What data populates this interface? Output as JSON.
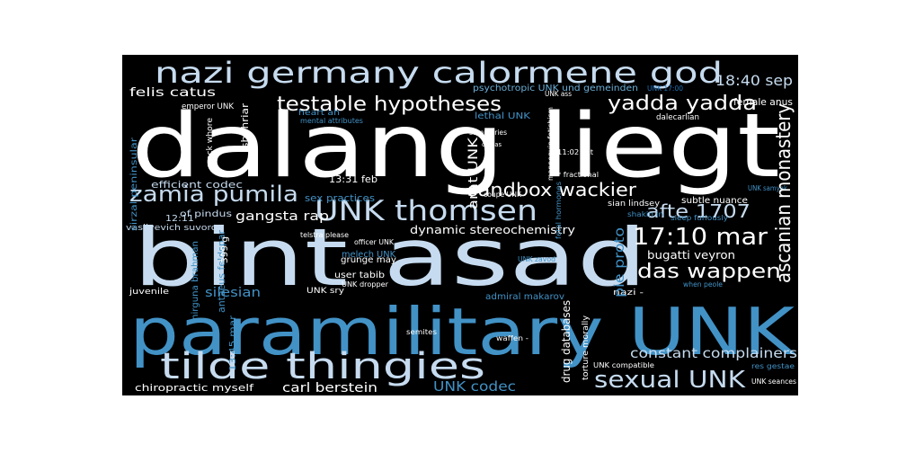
{
  "palette": {
    "white": "#ffffff",
    "light_blue": "#c6dbef",
    "mid_blue": "#6baed6",
    "blue": "#4292c6",
    "deep_blue": "#2171b5",
    "background": "#000000"
  },
  "words": [
    {
      "id": "dalang-liegt",
      "text": "dalang liegt",
      "color": "white"
    },
    {
      "id": "bint-asad",
      "text": "bint asad",
      "color": "light_blue"
    },
    {
      "id": "paramilitary-unk",
      "text": "paramilitary UNK",
      "color": "blue"
    },
    {
      "id": "nazi-germany-calormene-god",
      "text": "nazi germany calormene god",
      "color": "light_blue"
    },
    {
      "id": "tilde-thingies",
      "text": "tilde thingies",
      "color": "light_blue"
    },
    {
      "id": "testable-hypotheses",
      "text": "testable hypotheses",
      "color": "white"
    },
    {
      "id": "yadda-yadda",
      "text": "yadda yadda",
      "color": "white"
    },
    {
      "id": "zamia-pumila",
      "text": "zamia pumila",
      "color": "light_blue"
    },
    {
      "id": "unk-thomsen",
      "text": "UNK thomsen",
      "color": "light_blue"
    },
    {
      "id": "17-10-mar",
      "text": "17:10 mar",
      "color": "white"
    },
    {
      "id": "sandbox-wackier",
      "text": "sandbox wackier",
      "color": "white"
    },
    {
      "id": "das-wappen",
      "text": "das wappen",
      "color": "white"
    },
    {
      "id": "sexual-unk",
      "text": "sexual UNK",
      "color": "light_blue"
    },
    {
      "id": "afte-1707",
      "text": "afte 1707",
      "color": "light_blue"
    },
    {
      "id": "18-40-sep",
      "text": "18:40 sep",
      "color": "light_blue"
    },
    {
      "id": "ascanian-monastery",
      "text": "ascanian monastery",
      "color": "white"
    },
    {
      "id": "constant-complainers",
      "text": "constant complainers",
      "color": "light_blue"
    },
    {
      "id": "gangsta-rap",
      "text": "gangsta rap",
      "color": "white"
    },
    {
      "id": "felis-catus",
      "text": "felis catus",
      "color": "white"
    },
    {
      "id": "dynamic-stereochemistry",
      "text": "dynamic stereochemistry",
      "color": "white"
    },
    {
      "id": "bugatti-veyron",
      "text": "bugatti veyron",
      "color": "white"
    },
    {
      "id": "carl-berstein",
      "text": "carl berstein",
      "color": "white"
    },
    {
      "id": "unk-codec",
      "text": "UNK codec",
      "color": "blue"
    },
    {
      "id": "arat-unk",
      "text": "arat UNK",
      "color": "white"
    },
    {
      "id": "silesian",
      "text": "silesian",
      "color": "blue"
    },
    {
      "id": "pie-proto",
      "text": "pie proto",
      "color": "blue"
    },
    {
      "id": "efficient-codec",
      "text": "efficient codec",
      "color": "light_blue"
    },
    {
      "id": "sex-practices",
      "text": "sex practices",
      "color": "blue"
    },
    {
      "id": "13-31-feb",
      "text": "13:31 feb",
      "color": "white"
    },
    {
      "id": "chiropractic-myself",
      "text": "chiropractic myself",
      "color": "white"
    },
    {
      "id": "psychotropic-unk-und-gemeinden",
      "text": "psychotropic UNK und gemeinden",
      "color": "mid_blue"
    },
    {
      "id": "lethal-unk",
      "text": "lethal UNK",
      "color": "blue"
    },
    {
      "id": "heart-ah",
      "text": "heart ah",
      "color": "blue"
    },
    {
      "id": "emperor-unk",
      "text": "emperor UNK",
      "color": "white"
    },
    {
      "id": "vasilyevich-suvorov",
      "text": "vasilyevich suvorov",
      "color": "light_blue"
    },
    {
      "id": "of-pindus",
      "text": "of pindus",
      "color": "light_blue"
    },
    {
      "id": "shahriar",
      "text": "shahriar",
      "color": "white"
    },
    {
      "id": "12-11",
      "text": "12:11",
      "color": "light_blue"
    },
    {
      "id": "grunge-may",
      "text": "grunge may",
      "color": "white"
    },
    {
      "id": "user-tabib",
      "text": "user tabib",
      "color": "white"
    },
    {
      "id": "melech-unk",
      "text": "melech UNK",
      "color": "blue"
    },
    {
      "id": "unk-dropper",
      "text": "UNK dropper",
      "color": "white"
    },
    {
      "id": "female-anus",
      "text": "female anus",
      "color": "white"
    },
    {
      "id": "subtle-nuance",
      "text": "subtle nuance",
      "color": "white"
    },
    {
      "id": "admiral-makarov",
      "text": "admiral makarov",
      "color": "blue"
    },
    {
      "id": "drug-databases",
      "text": "drug databases",
      "color": "white"
    },
    {
      "id": "torture-morally",
      "text": "torture morally",
      "color": "white"
    },
    {
      "id": "unk-compatible",
      "text": "UNK compatible",
      "color": "white"
    },
    {
      "id": "juvenile",
      "text": "juvenile",
      "color": "white"
    },
    {
      "id": "res-gestae",
      "text": "res gestae",
      "color": "blue"
    },
    {
      "id": "unk-seances",
      "text": "UNK seances",
      "color": "white"
    },
    {
      "id": "sian-lindsey",
      "text": "sian lindsey",
      "color": "white"
    },
    {
      "id": "shakin-in",
      "text": "shakin in",
      "color": "blue"
    },
    {
      "id": "sleep-furiously",
      "text": "sleep furiously",
      "color": "blue"
    },
    {
      "id": "nazi-dash",
      "text": "nazi -",
      "color": "white"
    },
    {
      "id": "unk-sry",
      "text": "UNK sry",
      "color": "white"
    },
    {
      "id": "when-peole",
      "text": "when peole",
      "color": "blue"
    },
    {
      "id": "semites",
      "text": "semites",
      "color": "white"
    },
    {
      "id": "waffen",
      "text": "waffen -",
      "color": "white"
    },
    {
      "id": "13-45-mar",
      "text": "13:45 mar",
      "color": "blue"
    },
    {
      "id": "nirguna-brahman",
      "text": "nirguna brahman",
      "color": "blue"
    },
    {
      "id": "antaeus-feldspar",
      "text": "antaeus feldspar",
      "color": "blue"
    },
    {
      "id": "officer-unk",
      "text": "officer UNK",
      "color": "white"
    },
    {
      "id": "telstra-please",
      "text": "telstra please",
      "color": "white"
    },
    {
      "id": "mannequin-fetishism",
      "text": "mannequin fetishism",
      "color": "white"
    },
    {
      "id": "fetal-hormones",
      "text": "fetal hormones",
      "color": "blue"
    },
    {
      "id": "summaries",
      "text": "* summaries",
      "color": "white"
    },
    {
      "id": "fractional",
      "text": "* fractional",
      "color": "white"
    },
    {
      "id": "coupe-unk",
      "text": "coupe UNK",
      "color": "white"
    },
    {
      "id": "unk-zavod",
      "text": "UNK zavod",
      "color": "blue"
    },
    {
      "id": "comas",
      "text": "comas",
      "color": "white"
    },
    {
      "id": "mental-attributes",
      "text": "mental attributes",
      "color": "blue"
    },
    {
      "id": "crack-whore",
      "text": "crack whore",
      "color": "white"
    },
    {
      "id": "sirzal-peninsular",
      "text": "sirzal peninsular",
      "color": "blue"
    },
    {
      "id": "dalecarlian",
      "text": "dalecarlian",
      "color": "white"
    },
    {
      "id": "11-02-oct",
      "text": "11:02 oct",
      "color": "white"
    },
    {
      "id": "unk-17-00",
      "text": "UNK 17:00",
      "color": "deep_blue"
    },
    {
      "id": "unk-samyak",
      "text": "UNK samyak",
      "color": "blue"
    },
    {
      "id": "399-g",
      "text": "399 g",
      "color": "white"
    },
    {
      "id": "unk-ass",
      "text": "UNK ass",
      "color": "white"
    }
  ]
}
